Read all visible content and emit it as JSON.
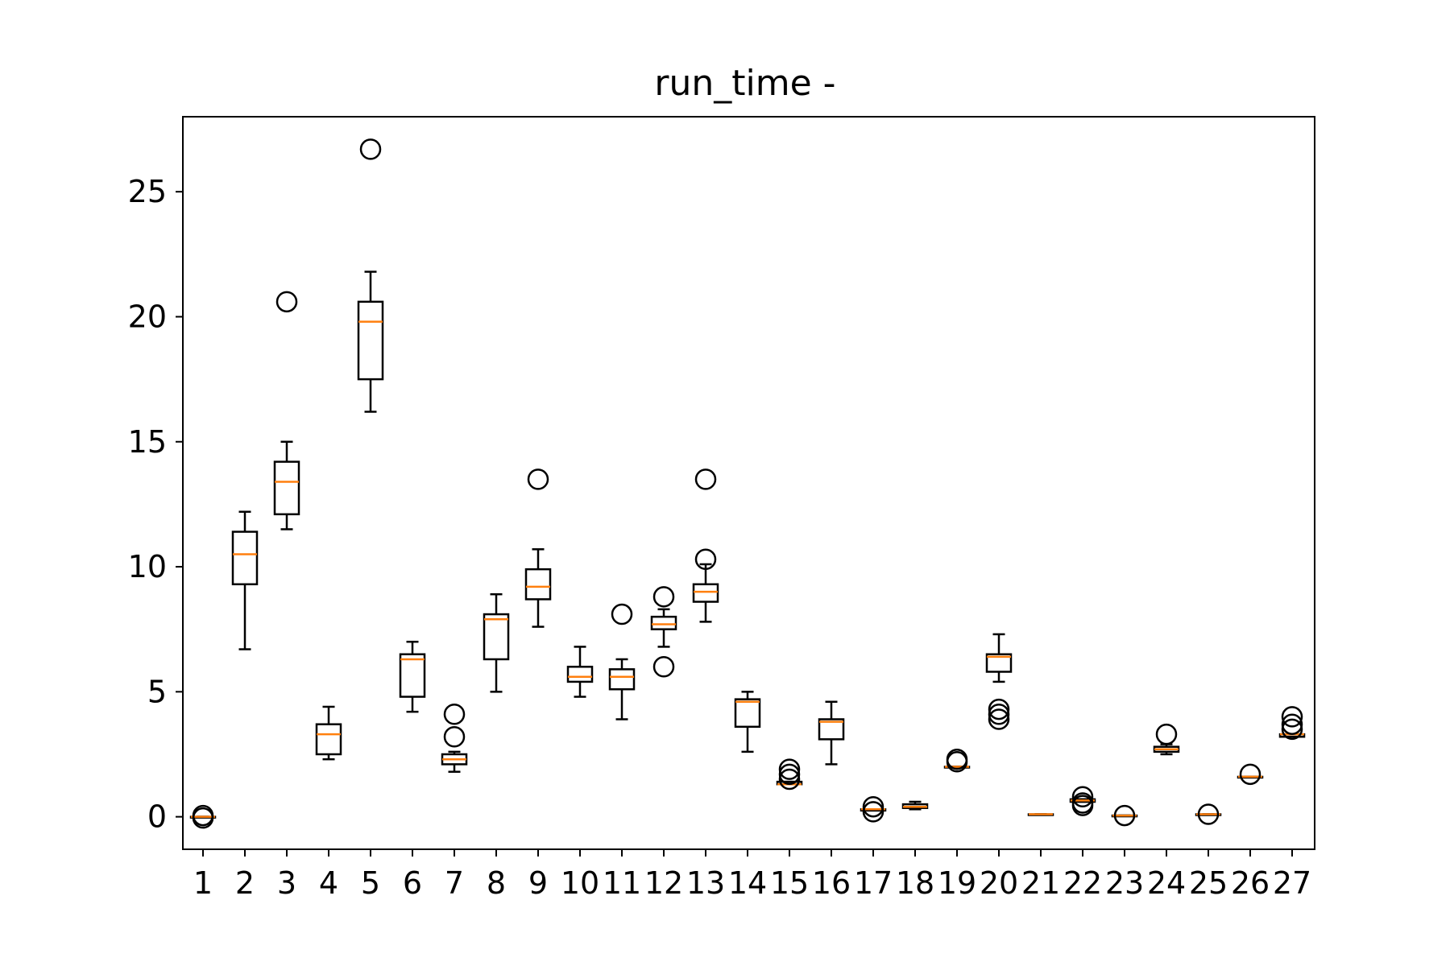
{
  "chart_data": {
    "type": "box",
    "title": "run_time -",
    "xlabel": "",
    "ylabel": "",
    "categories": [
      "1",
      "2",
      "3",
      "4",
      "5",
      "6",
      "7",
      "8",
      "9",
      "10",
      "11",
      "12",
      "13",
      "14",
      "15",
      "16",
      "17",
      "18",
      "19",
      "20",
      "21",
      "22",
      "23",
      "24",
      "25",
      "26",
      "27"
    ],
    "ylim": [
      -1.3,
      28.0
    ],
    "yticks": [
      0,
      5,
      10,
      15,
      20,
      25
    ],
    "colors": {
      "box": "#000000",
      "median": "#ff7f0e",
      "axes": "#000000"
    },
    "boxes": [
      {
        "whislo": 0.0,
        "q1": 0.0,
        "med": 0.0,
        "q3": 0.0,
        "whishi": 0.0,
        "fliers": [
          0.05,
          -0.05
        ]
      },
      {
        "whislo": 6.7,
        "q1": 9.3,
        "med": 10.5,
        "q3": 11.4,
        "whishi": 12.2,
        "fliers": []
      },
      {
        "whislo": 11.5,
        "q1": 12.1,
        "med": 13.4,
        "q3": 14.2,
        "whishi": 15.0,
        "fliers": [
          20.6
        ]
      },
      {
        "whislo": 2.3,
        "q1": 2.5,
        "med": 3.3,
        "q3": 3.7,
        "whishi": 4.4,
        "fliers": []
      },
      {
        "whislo": 16.2,
        "q1": 17.5,
        "med": 19.8,
        "q3": 20.6,
        "whishi": 21.8,
        "fliers": [
          26.7
        ]
      },
      {
        "whislo": 4.2,
        "q1": 4.8,
        "med": 6.3,
        "q3": 6.5,
        "whishi": 7.0,
        "fliers": []
      },
      {
        "whislo": 1.8,
        "q1": 2.1,
        "med": 2.3,
        "q3": 2.5,
        "whishi": 2.6,
        "fliers": [
          3.2,
          4.1
        ]
      },
      {
        "whislo": 5.0,
        "q1": 6.3,
        "med": 7.9,
        "q3": 8.1,
        "whishi": 8.9,
        "fliers": []
      },
      {
        "whislo": 7.6,
        "q1": 8.7,
        "med": 9.2,
        "q3": 9.9,
        "whishi": 10.7,
        "fliers": [
          13.5
        ]
      },
      {
        "whislo": 4.8,
        "q1": 5.4,
        "med": 5.6,
        "q3": 6.0,
        "whishi": 6.8,
        "fliers": []
      },
      {
        "whislo": 3.9,
        "q1": 5.1,
        "med": 5.6,
        "q3": 5.9,
        "whishi": 6.3,
        "fliers": [
          8.1
        ]
      },
      {
        "whislo": 6.8,
        "q1": 7.5,
        "med": 7.7,
        "q3": 8.0,
        "whishi": 8.3,
        "fliers": [
          6.0,
          8.8
        ]
      },
      {
        "whislo": 7.8,
        "q1": 8.6,
        "med": 9.0,
        "q3": 9.3,
        "whishi": 10.1,
        "fliers": [
          10.3,
          13.5
        ]
      },
      {
        "whislo": 2.6,
        "q1": 3.6,
        "med": 4.6,
        "q3": 4.7,
        "whishi": 5.0,
        "fliers": []
      },
      {
        "whislo": 1.3,
        "q1": 1.3,
        "med": 1.3,
        "q3": 1.4,
        "whishi": 1.4,
        "fliers": [
          1.5,
          1.7,
          1.9
        ]
      },
      {
        "whislo": 2.1,
        "q1": 3.1,
        "med": 3.8,
        "q3": 3.9,
        "whishi": 4.6,
        "fliers": []
      },
      {
        "whislo": 0.25,
        "q1": 0.25,
        "med": 0.3,
        "q3": 0.3,
        "whishi": 0.3,
        "fliers": [
          0.2,
          0.4
        ]
      },
      {
        "whislo": 0.3,
        "q1": 0.35,
        "med": 0.4,
        "q3": 0.5,
        "whishi": 0.6,
        "fliers": []
      },
      {
        "whislo": 2.0,
        "q1": 2.0,
        "med": 2.0,
        "q3": 2.0,
        "whishi": 2.0,
        "fliers": [
          2.2,
          2.3
        ]
      },
      {
        "whislo": 5.4,
        "q1": 5.8,
        "med": 6.4,
        "q3": 6.5,
        "whishi": 7.3,
        "fliers": [
          3.9,
          4.1,
          4.3
        ]
      },
      {
        "whislo": 0.1,
        "q1": 0.1,
        "med": 0.1,
        "q3": 0.1,
        "whishi": 0.1,
        "fliers": []
      },
      {
        "whislo": 0.6,
        "q1": 0.6,
        "med": 0.65,
        "q3": 0.7,
        "whishi": 0.7,
        "fliers": [
          0.45,
          0.55,
          0.8
        ]
      },
      {
        "whislo": 0.05,
        "q1": 0.05,
        "med": 0.05,
        "q3": 0.05,
        "whishi": 0.05,
        "fliers": [
          0.05
        ]
      },
      {
        "whislo": 2.5,
        "q1": 2.6,
        "med": 2.7,
        "q3": 2.8,
        "whishi": 2.9,
        "fliers": [
          3.3
        ]
      },
      {
        "whislo": 0.1,
        "q1": 0.1,
        "med": 0.1,
        "q3": 0.1,
        "whishi": 0.1,
        "fliers": [
          0.1
        ]
      },
      {
        "whislo": 1.6,
        "q1": 1.6,
        "med": 1.6,
        "q3": 1.6,
        "whishi": 1.6,
        "fliers": [
          1.7
        ]
      },
      {
        "whislo": 3.2,
        "q1": 3.2,
        "med": 3.3,
        "q3": 3.3,
        "whishi": 3.3,
        "fliers": [
          3.5,
          3.7,
          4.0
        ]
      }
    ]
  }
}
